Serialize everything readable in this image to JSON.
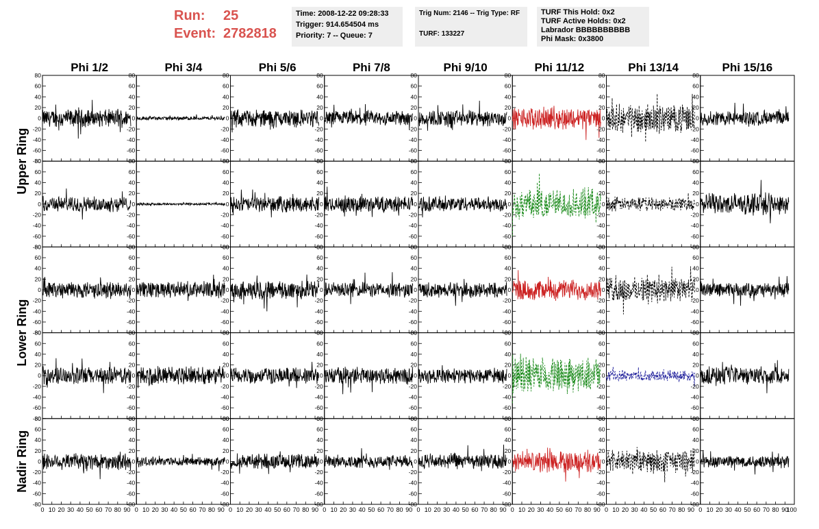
{
  "header": {
    "run_label": "Run:",
    "run_value": "25",
    "event_label": "Event:",
    "event_value": "2782818"
  },
  "info": {
    "time": "Time: 2008-12-22 09:28:33",
    "trigger": "Trigger: 914.654504 ms",
    "priority_queue": "Priority: 7 -- Queue: 7",
    "trig_num_type": "Trig Num: 2146 -- Trig Type: RF",
    "turf": "TURF: 133227",
    "turf_this_hold": "TURF This Hold: 0x2",
    "turf_active_holds": "TURF Active Holds: 0x2",
    "labrador": "Labrador BBBBBBBBBB",
    "phi_mask": "Phi Mask: 0x3800"
  },
  "colors": {
    "header_text": "#d9534f",
    "trace_default": "#000000",
    "trace_red": "#cc2222",
    "trace_green": "#1a8a1a",
    "trace_blue": "#1a1a99"
  },
  "chart_data": {
    "type": "line",
    "description_grid": "5 rows x 8 columns of waveform panels",
    "columns": [
      "Phi 1/2",
      "Phi 3/4",
      "Phi 5/6",
      "Phi 7/8",
      "Phi 9/10",
      "Phi 11/12",
      "Phi 13/14",
      "Phi 15/16"
    ],
    "ring_labels": [
      "Upper Ring",
      "Lower Ring",
      "Nadir Ring"
    ],
    "ring_row_spans": [
      [
        0,
        1
      ],
      [
        2,
        3
      ],
      [
        4,
        4
      ]
    ],
    "rows": 5,
    "xlim": [
      0,
      100
    ],
    "ylim": [
      -80,
      80
    ],
    "x_ticks": [
      0,
      10,
      20,
      30,
      40,
      50,
      60,
      70,
      80,
      90
    ],
    "x_tick_labels": [
      "0",
      "10",
      "20",
      "30",
      "40",
      "50",
      "60",
      "70",
      "80",
      "90"
    ],
    "x_last_label": "100",
    "y_ticks": [
      -80,
      -60,
      -40,
      -20,
      0,
      20,
      40,
      60,
      80
    ],
    "y_tick_labels": [
      "-80",
      "-60",
      "-40",
      "-20",
      "0",
      "20",
      "40",
      "60",
      "80"
    ],
    "trace_x_range": [
      0,
      94
    ],
    "trace_samples": 260,
    "panels": [
      [
        {
          "amp": 14,
          "style": "solid",
          "color": "#000000"
        },
        {
          "amp": 3,
          "style": "solid",
          "color": "#000000"
        },
        {
          "amp": 14,
          "style": "solid",
          "color": "#000000"
        },
        {
          "amp": 12,
          "style": "solid",
          "color": "#000000"
        },
        {
          "amp": 13,
          "style": "solid",
          "color": "#000000"
        },
        {
          "amp": 17,
          "style": "solid",
          "color": "#cc2222"
        },
        {
          "amp": 22,
          "style": "dashed",
          "color": "#000000"
        },
        {
          "amp": 12,
          "style": "solid",
          "color": "#000000"
        }
      ],
      [
        {
          "amp": 12,
          "style": "solid",
          "color": "#000000"
        },
        {
          "amp": 2,
          "style": "solid",
          "color": "#000000"
        },
        {
          "amp": 12,
          "style": "solid",
          "color": "#000000"
        },
        {
          "amp": 13,
          "style": "solid",
          "color": "#000000"
        },
        {
          "amp": 12,
          "style": "solid",
          "color": "#000000"
        },
        {
          "amp": 24,
          "style": "dashed",
          "color": "#1a8a1a"
        },
        {
          "amp": 11,
          "style": "dashed",
          "color": "#000000"
        },
        {
          "amp": 17,
          "style": "solid",
          "color": "#000000"
        }
      ],
      [
        {
          "amp": 13,
          "style": "solid",
          "color": "#000000"
        },
        {
          "amp": 13,
          "style": "solid",
          "color": "#000000"
        },
        {
          "amp": 15,
          "style": "solid",
          "color": "#000000"
        },
        {
          "amp": 12,
          "style": "solid",
          "color": "#000000"
        },
        {
          "amp": 12,
          "style": "solid",
          "color": "#000000"
        },
        {
          "amp": 16,
          "style": "solid",
          "color": "#cc2222"
        },
        {
          "amp": 20,
          "style": "dashed",
          "color": "#000000"
        },
        {
          "amp": 11,
          "style": "solid",
          "color": "#000000"
        }
      ],
      [
        {
          "amp": 14,
          "style": "solid",
          "color": "#000000"
        },
        {
          "amp": 15,
          "style": "solid",
          "color": "#000000"
        },
        {
          "amp": 13,
          "style": "solid",
          "color": "#000000"
        },
        {
          "amp": 14,
          "style": "solid",
          "color": "#000000"
        },
        {
          "amp": 12,
          "style": "solid",
          "color": "#000000"
        },
        {
          "amp": 28,
          "style": "dashed",
          "color": "#1a8a1a"
        },
        {
          "amp": 8,
          "style": "dashed",
          "color": "#1a1a99"
        },
        {
          "amp": 14,
          "style": "solid",
          "color": "#000000"
        }
      ],
      [
        {
          "amp": 14,
          "style": "solid",
          "color": "#000000"
        },
        {
          "amp": 7,
          "style": "solid",
          "color": "#000000"
        },
        {
          "amp": 12,
          "style": "solid",
          "color": "#000000"
        },
        {
          "amp": 10,
          "style": "solid",
          "color": "#000000"
        },
        {
          "amp": 12,
          "style": "solid",
          "color": "#000000"
        },
        {
          "amp": 16,
          "style": "solid",
          "color": "#cc2222"
        },
        {
          "amp": 18,
          "style": "dashed",
          "color": "#000000"
        },
        {
          "amp": 10,
          "style": "solid",
          "color": "#000000"
        }
      ]
    ]
  }
}
